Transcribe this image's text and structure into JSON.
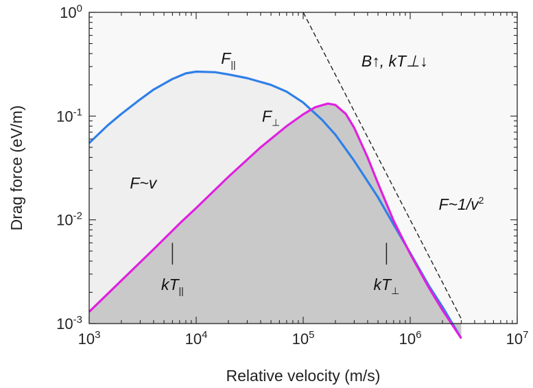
{
  "chart_data": {
    "type": "line",
    "title": "",
    "xlabel": "Relative velocity (m/s)",
    "ylabel": "Drag force (eV/m)",
    "xscale": "log",
    "yscale": "log",
    "xlim": [
      1000,
      10000000
    ],
    "ylim": [
      0.001,
      1
    ],
    "x_ticks": [
      {
        "value": 1000,
        "base": "10",
        "exp": "3"
      },
      {
        "value": 10000,
        "base": "10",
        "exp": "4"
      },
      {
        "value": 100000,
        "base": "10",
        "exp": "5"
      },
      {
        "value": 1000000,
        "base": "10",
        "exp": "6"
      },
      {
        "value": 10000000,
        "base": "10",
        "exp": "7"
      }
    ],
    "y_ticks": [
      {
        "value": 0.001,
        "base": "10",
        "exp": "-3"
      },
      {
        "value": 0.01,
        "base": "10",
        "exp": "-2"
      },
      {
        "value": 0.1,
        "base": "10",
        "exp": "-1"
      },
      {
        "value": 1,
        "base": "10",
        "exp": "0"
      }
    ],
    "grid": false,
    "series": [
      {
        "name": "F∥",
        "label_main": "F",
        "label_sub": "||",
        "color": "#2f7fe8",
        "fill": "#efefef",
        "x": [
          1000,
          1500,
          2000,
          3000,
          4000,
          6000,
          8000,
          10000,
          15000,
          20000,
          30000,
          50000,
          70000,
          100000,
          150000,
          200000,
          300000,
          500000,
          700000,
          1000000,
          1500000,
          2000000,
          3000000
        ],
        "y": [
          0.055,
          0.082,
          0.105,
          0.145,
          0.18,
          0.228,
          0.258,
          0.268,
          0.265,
          0.252,
          0.232,
          0.2,
          0.172,
          0.135,
          0.092,
          0.066,
          0.037,
          0.0165,
          0.009,
          0.0048,
          0.0023,
          0.00145,
          0.00072
        ]
      },
      {
        "name": "F⊥",
        "label_main": "F",
        "label_sub": "⊥",
        "color": "#e020e0",
        "fill": "#c9c9c9",
        "x": [
          1000,
          2000,
          4000,
          7000,
          10000,
          20000,
          40000,
          70000,
          100000,
          130000,
          170000,
          200000,
          250000,
          300000,
          400000,
          500000,
          700000,
          1000000,
          1500000,
          2000000,
          3000000
        ],
        "y": [
          0.0013,
          0.0026,
          0.0052,
          0.0092,
          0.013,
          0.026,
          0.05,
          0.08,
          0.104,
          0.122,
          0.132,
          0.128,
          0.105,
          0.077,
          0.04,
          0.0225,
          0.0098,
          0.0047,
          0.0022,
          0.00135,
          0.00072
        ]
      }
    ],
    "asymptote": {
      "style": "dashed",
      "color": "#222222",
      "x": [
        100000,
        3000000
      ],
      "y": [
        1,
        0.00111
      ]
    },
    "annotations": [
      {
        "id": "f-para",
        "main": "F",
        "sub": "||",
        "x": 140000000,
        "y": 0.32,
        "color": "#2f7fe8"
      },
      {
        "id": "f-perp",
        "main": "F",
        "sub": "⊥",
        "x": 50000,
        "y": 0.088,
        "color": "#e020e0"
      },
      {
        "id": "regime-high",
        "text": "B↑, kT⊥↓",
        "x": 350000,
        "y": 0.3
      },
      {
        "id": "f-v",
        "text": "F~v",
        "x": 2400,
        "y": 0.02
      },
      {
        "id": "f-inv",
        "text_main": "F~1/v",
        "sup": "2",
        "x": 3000000,
        "y": 0.0125
      },
      {
        "id": "kt-para",
        "main": "kT",
        "sub": "||",
        "x": 6000,
        "y": 0.0021
      },
      {
        "id": "kt-perp",
        "main": "kT",
        "sub": "⊥",
        "x": 600000,
        "y": 0.0021
      }
    ],
    "markers": [
      {
        "id": "kt-para-marker",
        "x": 6000,
        "y_from": 0.0037,
        "y_to": 0.006
      },
      {
        "id": "kt-perp-marker",
        "x": 600000,
        "y_from": 0.0037,
        "y_to": 0.006
      }
    ]
  }
}
